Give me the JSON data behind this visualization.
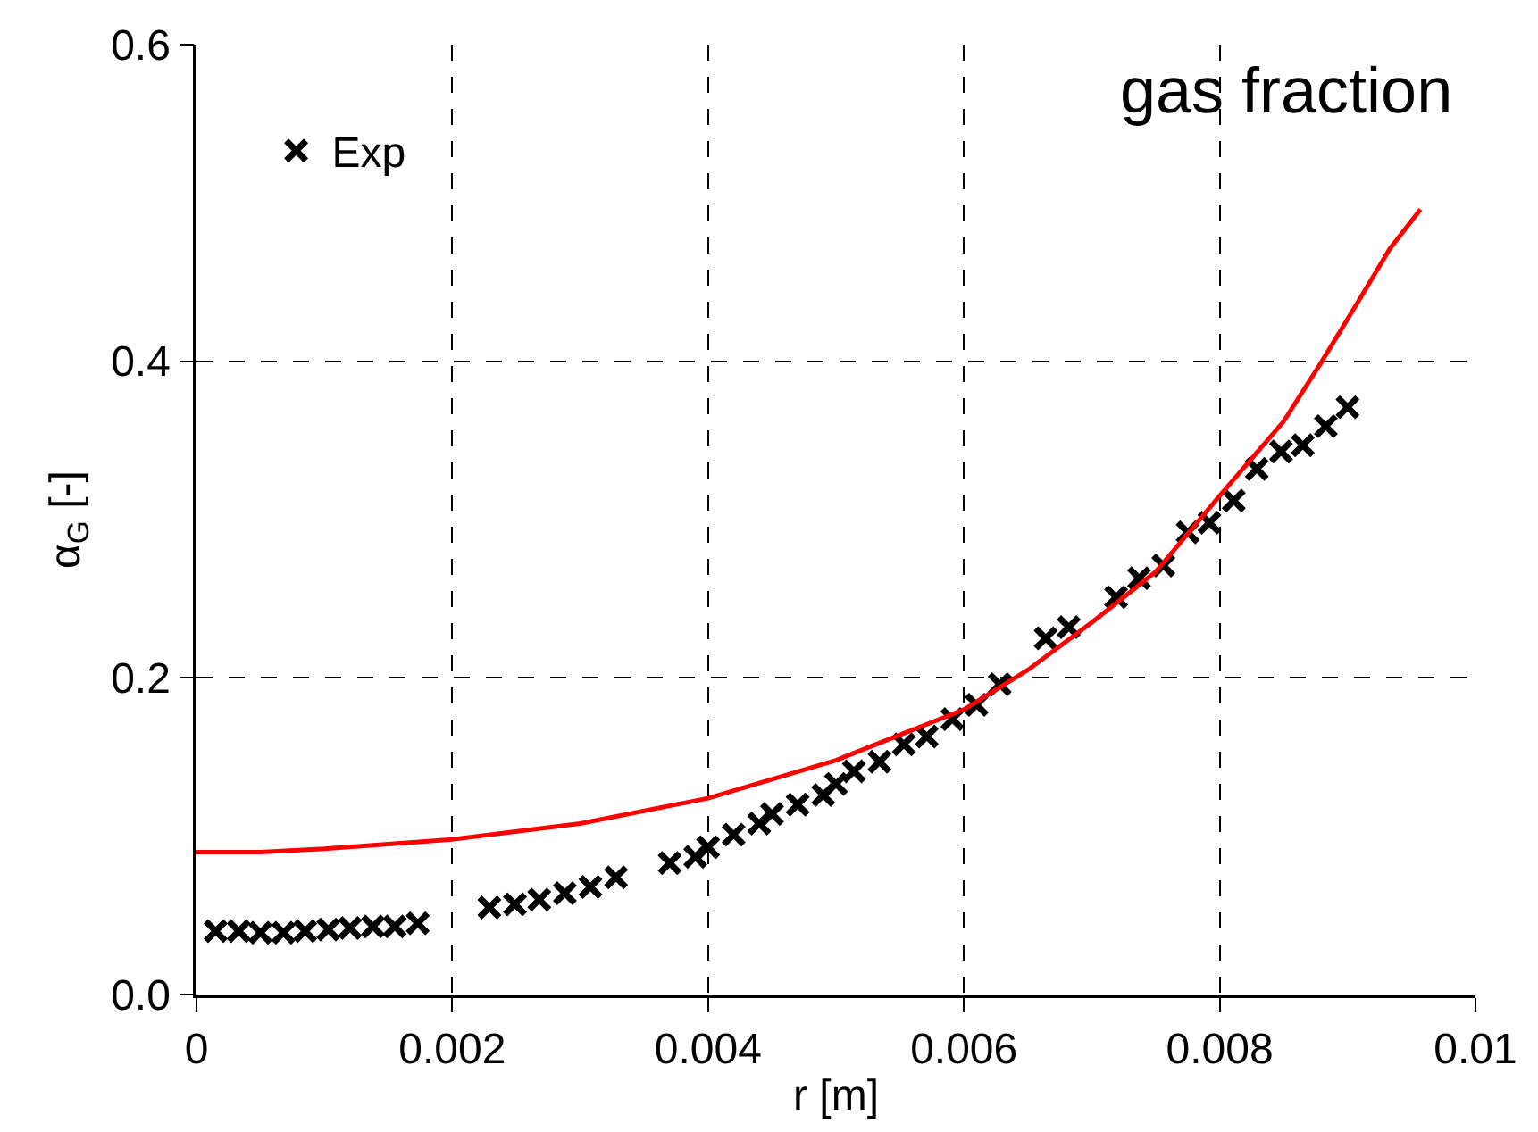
{
  "chart_data": {
    "type": "scatter",
    "xlabel": "r [m]",
    "ylabel": "α$_{G}$ [-]",
    "annotations": [
      "gas fraction"
    ],
    "xlim": [
      0,
      0.01
    ],
    "ylim": [
      0,
      0.6
    ],
    "xticks": [
      0,
      0.002,
      0.004,
      0.006,
      0.008,
      0.01
    ],
    "yticks": [
      {
        "value": 0,
        "label": "0.0"
      },
      0.2,
      0.4,
      0.6
    ],
    "grid": true,
    "legend": "top left",
    "series": [
      {
        "name": "Exp",
        "marker": "cross",
        "color": "#000000",
        "x": [
          0.00015,
          0.00033,
          0.0005,
          0.00068,
          0.00085,
          0.00103,
          0.0012,
          0.00138,
          0.00155,
          0.00173,
          0.00229,
          0.00249,
          0.00268,
          0.00288,
          0.00308,
          0.00328,
          0.0037,
          0.0039,
          0.004,
          0.0042,
          0.0044,
          0.0045,
          0.0047,
          0.0049,
          0.005,
          0.00514,
          0.00534,
          0.00553,
          0.00571,
          0.00591,
          0.0061,
          0.00628,
          0.00664,
          0.00682,
          0.00719,
          0.00737,
          0.00756,
          0.00775,
          0.00792,
          0.00811,
          0.00829,
          0.00848,
          0.00865,
          0.00883,
          0.009
        ],
        "values": [
          0.04,
          0.04,
          0.039,
          0.039,
          0.04,
          0.041,
          0.042,
          0.043,
          0.043,
          0.045,
          0.055,
          0.057,
          0.06,
          0.064,
          0.068,
          0.074,
          0.083,
          0.087,
          0.093,
          0.101,
          0.108,
          0.114,
          0.12,
          0.126,
          0.133,
          0.141,
          0.147,
          0.158,
          0.163,
          0.174,
          0.183,
          0.196,
          0.225,
          0.232,
          0.251,
          0.263,
          0.271,
          0.292,
          0.298,
          0.312,
          0.332,
          0.343,
          0.347,
          0.359,
          0.371
        ]
      },
      {
        "type": "line",
        "color": "#ff0000",
        "line_style": "solid",
        "x": [
          0,
          0.0005,
          0.001,
          0.002,
          0.003,
          0.004,
          0.005,
          0.006,
          0.0065,
          0.007,
          0.0075,
          0.008,
          0.0085,
          0.0088,
          0.0091,
          0.00933,
          0.00957
        ],
        "values": [
          0.09,
          0.09,
          0.092,
          0.098,
          0.108,
          0.124,
          0.148,
          0.18,
          0.205,
          0.235,
          0.267,
          0.315,
          0.362,
          0.4,
          0.44,
          0.471,
          0.496
        ]
      }
    ]
  }
}
